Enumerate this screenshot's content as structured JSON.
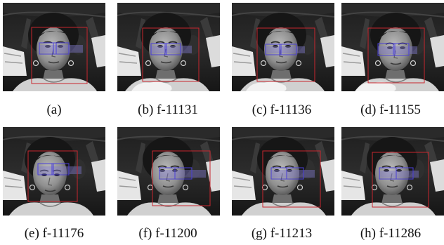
{
  "figure": {
    "panels": [
      {
        "label": "(a)",
        "variant": "a"
      },
      {
        "label": "(b) f-11131",
        "variant": "b"
      },
      {
        "label": "(c) f-11136",
        "variant": "c"
      },
      {
        "label": "(d) f-11155",
        "variant": "d"
      },
      {
        "label": "(e) f-11176",
        "variant": "e"
      },
      {
        "label": "(f) f-11200",
        "variant": "f"
      },
      {
        "label": "(g) f-11213",
        "variant": "g"
      },
      {
        "label": "(h) f-11286",
        "variant": "h"
      }
    ],
    "colors": {
      "face_box": "#c8262e",
      "eye_box": "#4a3fd9",
      "eye_fill": "#7f78c9"
    }
  }
}
